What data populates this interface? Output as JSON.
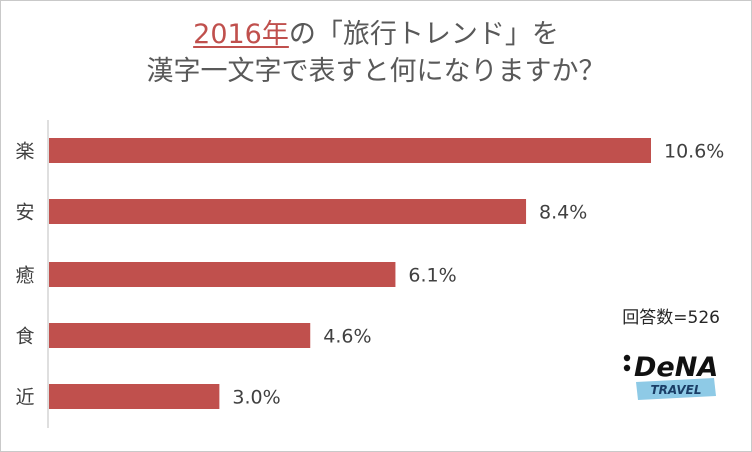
{
  "title": {
    "highlight": "2016年",
    "line1_rest": "の「旅行トレンド」を",
    "line2": "漢字一文字で表すと何になりますか？"
  },
  "respondents": "回答数=526",
  "logo": {
    "brand": "DeNA",
    "sub": "TRAVEL"
  },
  "colors": {
    "bar": "#c0504d",
    "logo_band": "#8ecae6"
  },
  "chart_data": {
    "type": "bar",
    "orientation": "horizontal",
    "categories": [
      "楽",
      "安",
      "癒",
      "食",
      "近"
    ],
    "values": [
      10.6,
      8.4,
      6.1,
      4.6,
      3.0
    ],
    "labels": [
      "10.6%",
      "8.4%",
      "6.1%",
      "4.6%",
      "3.0%"
    ],
    "unit": "%",
    "xlim": [
      0,
      10.6
    ],
    "title": "2016年の「旅行トレンド」を漢字一文字で表すと何になりますか？",
    "grid": false,
    "legend": "none"
  }
}
